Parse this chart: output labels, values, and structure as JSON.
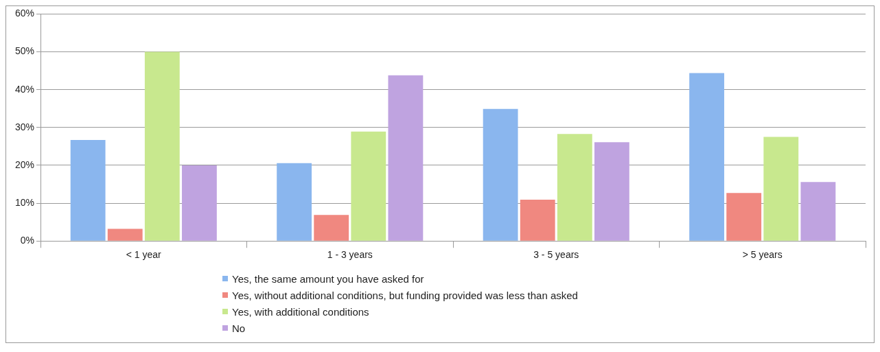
{
  "chart_data": {
    "type": "bar",
    "categories": [
      "< 1 year",
      "1 - 3 years",
      "3 - 5 years",
      "> 5 years"
    ],
    "series": [
      {
        "name": "Yes, the same amount you have asked for",
        "color": "#8ab6ee",
        "values": [
          26.7,
          20.6,
          34.9,
          44.4
        ]
      },
      {
        "name": "Yes, without additional conditions, but funding provided was less than asked",
        "color": "#f08880",
        "values": [
          3.2,
          6.9,
          10.9,
          12.7
        ]
      },
      {
        "name": "Yes, with additional conditions",
        "color": "#c8e88e",
        "values": [
          50,
          28.9,
          28.3,
          27.5
        ]
      },
      {
        "name": "No",
        "color": "#bfa3e0",
        "values": [
          20,
          43.8,
          26.1,
          15.6
        ]
      }
    ],
    "ylim": [
      0,
      60
    ],
    "yticks": [
      {
        "value": 0,
        "label": "0%"
      },
      {
        "value": 10,
        "label": "10%"
      },
      {
        "value": 20,
        "label": "20%"
      },
      {
        "value": 30,
        "label": "30%"
      },
      {
        "value": 40,
        "label": "40%"
      },
      {
        "value": 50,
        "label": "50%"
      },
      {
        "value": 60,
        "label": "60%"
      }
    ],
    "grid": "y",
    "legend": "bottom"
  }
}
